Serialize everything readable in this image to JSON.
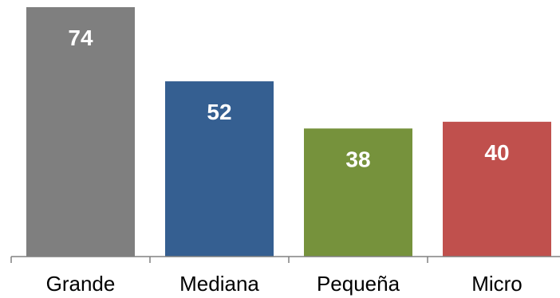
{
  "chart_data": {
    "type": "bar",
    "categories": [
      "Grande",
      "Mediana",
      "Pequeña",
      "Micro"
    ],
    "values": [
      74,
      52,
      38,
      40
    ],
    "colors": [
      "#7f7f7f",
      "#355f91",
      "#76923c",
      "#c0504d"
    ],
    "title": "",
    "xlabel": "",
    "ylabel": "",
    "ylim": [
      0,
      74
    ],
    "grid": false,
    "legend": "none",
    "data_labels": true
  }
}
